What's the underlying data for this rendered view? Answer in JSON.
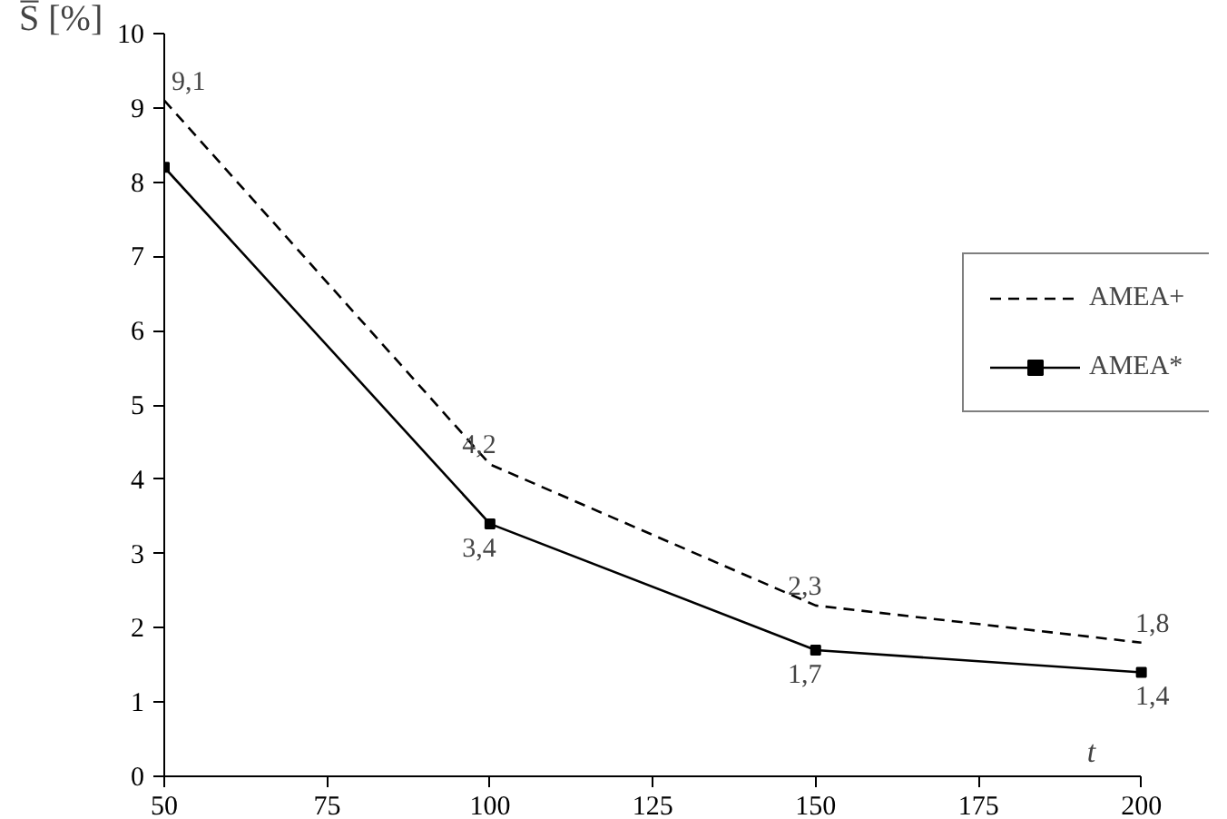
{
  "chart_data": {
    "type": "line",
    "xlabel": "t",
    "ylabel": "S̅ [%]",
    "x": [
      50,
      100,
      150,
      200
    ],
    "series": [
      {
        "name": "AMEA+",
        "color": "#000000",
        "line_style": "dashed",
        "marker": "none",
        "values": [
          9.1,
          4.2,
          2.3,
          1.8
        ],
        "value_labels": [
          "9,1",
          "4,2",
          "2,3",
          "1,8"
        ]
      },
      {
        "name": "AMEA*",
        "color": "#000000",
        "line_style": "solid",
        "marker": "square",
        "values": [
          8.2,
          3.4,
          1.7,
          1.4
        ],
        "value_labels": [
          null,
          "3,4",
          "1,7",
          "1,4"
        ]
      }
    ],
    "xlim": [
      50,
      200
    ],
    "xticks": [
      50,
      75,
      100,
      125,
      150,
      175,
      200
    ],
    "ylim": [
      0,
      10
    ],
    "yticks": [
      0,
      1,
      2,
      3,
      4,
      5,
      6,
      7,
      8,
      9,
      10
    ],
    "grid": false,
    "legend": "right"
  }
}
